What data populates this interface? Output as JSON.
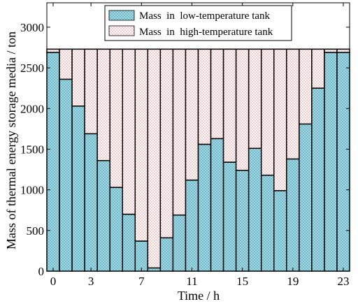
{
  "chart_data": {
    "type": "bar",
    "stacked": true,
    "xlabel": "Time / h",
    "ylabel": "Mass of thermal energy storage media / ton",
    "x": [
      0,
      1,
      2,
      3,
      4,
      5,
      6,
      7,
      8,
      9,
      10,
      11,
      12,
      13,
      14,
      15,
      16,
      17,
      18,
      19,
      20,
      21,
      22,
      23
    ],
    "xticks": [
      0,
      3,
      7,
      11,
      15,
      19,
      23
    ],
    "xlim": [
      -0.5,
      23.5
    ],
    "ylim": [
      0,
      3300
    ],
    "yticks": [
      0,
      500,
      1000,
      1500,
      2000,
      2500,
      3000
    ],
    "total": 2730,
    "series": [
      {
        "name": "Mass  in  low-temperature tank",
        "color": "#a8dde8",
        "pattern": "cross-hatch",
        "values": [
          2690,
          2360,
          2030,
          1690,
          1360,
          1030,
          700,
          370,
          40,
          410,
          690,
          1120,
          1560,
          1630,
          1340,
          1240,
          1510,
          1180,
          990,
          1380,
          1810,
          2250,
          2690,
          2690
        ]
      },
      {
        "name": "Mass  in  high-temperature tank",
        "color": "#f2b3b3",
        "pattern": "dotted",
        "values": [
          40,
          370,
          700,
          1040,
          1370,
          1700,
          2030,
          2360,
          2690,
          2320,
          2040,
          1610,
          1170,
          1100,
          1390,
          1490,
          1220,
          1550,
          1740,
          1350,
          920,
          480,
          40,
          40
        ]
      }
    ],
    "legend_position": "top-center",
    "grid": false
  }
}
